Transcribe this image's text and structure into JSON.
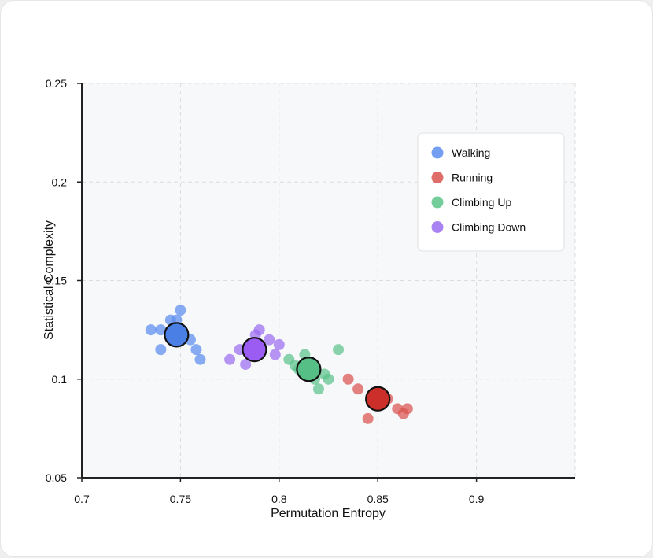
{
  "chart_data": {
    "type": "scatter",
    "xlabel": "Permutation Entropy",
    "ylabel": "Statistical Complexity",
    "xlim": [
      0.7,
      0.95
    ],
    "ylim": [
      0.05,
      0.25
    ],
    "xticks": [
      "0.7",
      "0.75",
      "0.8",
      "0.85",
      "0.9"
    ],
    "yticks": [
      "0.05",
      "0.1",
      "0.15",
      "0.2",
      "0.25"
    ],
    "grid": true,
    "legend_position": "top-right",
    "series": [
      {
        "name": "Walking",
        "color": "#5b8def",
        "centroid_color": "#4a7fe6",
        "centroid": {
          "x": 0.748,
          "y": 0.1225
        },
        "points": [
          {
            "x": 0.735,
            "y": 0.125
          },
          {
            "x": 0.74,
            "y": 0.125
          },
          {
            "x": 0.745,
            "y": 0.13
          },
          {
            "x": 0.748,
            "y": 0.13
          },
          {
            "x": 0.75,
            "y": 0.135
          },
          {
            "x": 0.755,
            "y": 0.12
          },
          {
            "x": 0.758,
            "y": 0.115
          },
          {
            "x": 0.76,
            "y": 0.11
          },
          {
            "x": 0.74,
            "y": 0.115
          }
        ]
      },
      {
        "name": "Running",
        "color": "#d9534f",
        "centroid_color": "#cc2f2a",
        "centroid": {
          "x": 0.85,
          "y": 0.09
        },
        "points": [
          {
            "x": 0.835,
            "y": 0.1
          },
          {
            "x": 0.84,
            "y": 0.095
          },
          {
            "x": 0.845,
            "y": 0.08
          },
          {
            "x": 0.855,
            "y": 0.09
          },
          {
            "x": 0.86,
            "y": 0.085
          },
          {
            "x": 0.863,
            "y": 0.0825
          },
          {
            "x": 0.865,
            "y": 0.085
          }
        ]
      },
      {
        "name": "Climbing Up",
        "color": "#5cc48a",
        "centroid_color": "#56bf86",
        "centroid": {
          "x": 0.815,
          "y": 0.105
        },
        "points": [
          {
            "x": 0.805,
            "y": 0.11
          },
          {
            "x": 0.808,
            "y": 0.107
          },
          {
            "x": 0.81,
            "y": 0.105
          },
          {
            "x": 0.813,
            "y": 0.1125
          },
          {
            "x": 0.818,
            "y": 0.1
          },
          {
            "x": 0.82,
            "y": 0.095
          },
          {
            "x": 0.823,
            "y": 0.1025
          },
          {
            "x": 0.825,
            "y": 0.1
          },
          {
            "x": 0.83,
            "y": 0.115
          }
        ]
      },
      {
        "name": "Climbing Down",
        "color": "#9b6df0",
        "centroid_color": "#9a5cf2",
        "centroid": {
          "x": 0.7875,
          "y": 0.115
        },
        "points": [
          {
            "x": 0.775,
            "y": 0.11
          },
          {
            "x": 0.78,
            "y": 0.115
          },
          {
            "x": 0.783,
            "y": 0.1075
          },
          {
            "x": 0.788,
            "y": 0.1225
          },
          {
            "x": 0.79,
            "y": 0.125
          },
          {
            "x": 0.795,
            "y": 0.12
          },
          {
            "x": 0.798,
            "y": 0.1125
          },
          {
            "x": 0.8,
            "y": 0.1175
          }
        ]
      }
    ]
  }
}
